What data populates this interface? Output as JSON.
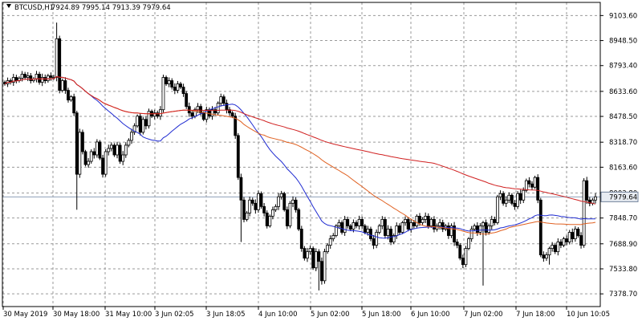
{
  "header": {
    "symbol": "BTCUSD,H1",
    "ohlc": "7924.89 7995.14 7913.39 7979.64"
  },
  "colors": {
    "background": "#ffffff",
    "grid": "#9a9a9a",
    "candle": "#000000",
    "ma_fast": "#1f2bd1",
    "ma_slow": "#e06020",
    "ma_long": "#d02020",
    "price_line": "#8fa0b8",
    "price_label_bg": "#e8ecf2"
  },
  "chart_data": {
    "type": "candlestick",
    "symbol": "BTCUSD",
    "timeframe": "H1",
    "ylim": [
      7300,
      9185
    ],
    "y_ticks": [
      "9103.60",
      "8948.50",
      "8793.40",
      "8633.60",
      "8478.50",
      "8318.70",
      "8163.60",
      "8003.80",
      "7848.70",
      "7688.90",
      "7533.80",
      "7378.70"
    ],
    "x_ticks": [
      "30 May 2019",
      "30 May 18:00",
      "31 May 10:00",
      "3 Jun 02:05",
      "3 Jun 18:05",
      "4 Jun 10:00",
      "5 Jun 02:00",
      "5 Jun 18:00",
      "6 Jun 10:00",
      "7 Jun 02:00",
      "7 Jun 18:00",
      "10 Jun 10:05"
    ],
    "current_price": "7979.64",
    "grid": true,
    "closes": [
      8680,
      8700,
      8690,
      8720,
      8700,
      8715,
      8740,
      8720,
      8730,
      8700,
      8710,
      8740,
      8690,
      8720,
      8700,
      8730,
      8720,
      8720,
      8960,
      8640,
      8700,
      8640,
      8580,
      8600,
      8500,
      8120,
      8380,
      8260,
      8180,
      8200,
      8260,
      8240,
      8320,
      8220,
      8120,
      8260,
      8280,
      8300,
      8240,
      8300,
      8200,
      8240,
      8300,
      8330,
      8380,
      8420,
      8480,
      8380,
      8460,
      8420,
      8510,
      8480,
      8500,
      8480,
      8520,
      8720,
      8680,
      8700,
      8660,
      8640,
      8680,
      8660,
      8620,
      8540,
      8500,
      8480,
      8520,
      8540,
      8500,
      8460,
      8520,
      8480,
      8520,
      8500,
      8560,
      8600,
      8560,
      8520,
      8500,
      8480,
      8360,
      8100,
      7960,
      7840,
      7880,
      7960,
      7940,
      7900,
      8000,
      7920,
      7880,
      7800,
      7860,
      7900,
      7920,
      7980,
      8000,
      7900,
      7800,
      7940,
      7960,
      7900,
      7780,
      7660,
      7600,
      7640,
      7660,
      7540,
      7640,
      7580,
      7460,
      7640,
      7680,
      7720,
      7740,
      7800,
      7820,
      7760,
      7840,
      7800,
      7780,
      7820,
      7800,
      7840,
      7800,
      7760,
      7780,
      7720,
      7680,
      7760,
      7800,
      7840,
      7740,
      7780,
      7700,
      7740,
      7800,
      7760,
      7820,
      7840,
      7780,
      7820,
      7800,
      7860,
      7820,
      7840,
      7860,
      7800,
      7840,
      7780,
      7800,
      7820,
      7780,
      7800,
      7740,
      7800,
      7700,
      7680,
      7600,
      7560,
      7660,
      7720,
      7780,
      7800,
      7760,
      7800,
      7820,
      7760,
      7800,
      7840,
      7820,
      7980,
      8000,
      7940,
      7960,
      7990,
      7940,
      7920,
      8000,
      7960,
      8020,
      8080,
      8060,
      8040,
      8100,
      7960,
      7620,
      7600,
      7620,
      7660,
      7680,
      7640,
      7700,
      7680,
      7720,
      7700,
      7760,
      7720,
      7780,
      7740,
      7680,
      8080,
      7960,
      7940,
      7960,
      7980
    ]
  }
}
